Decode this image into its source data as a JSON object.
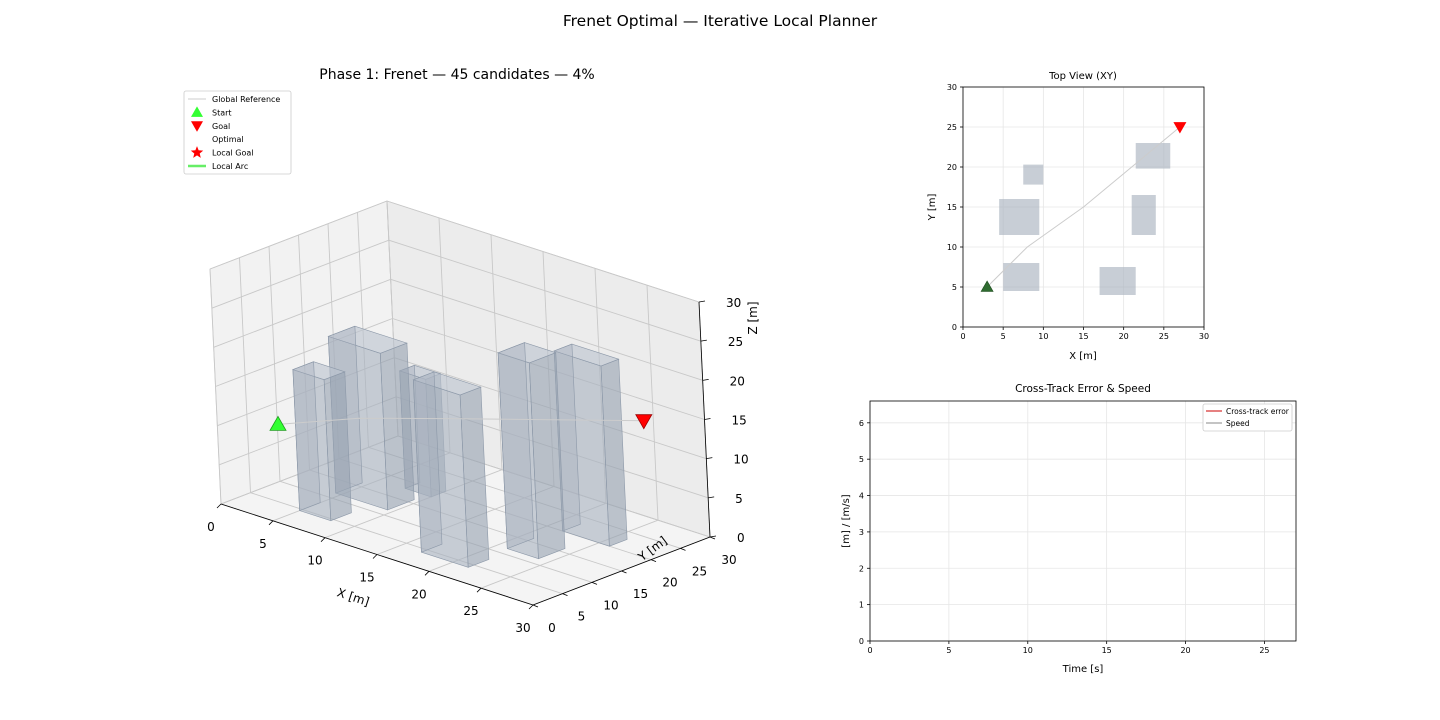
{
  "figure": {
    "suptitle": "Frenet Optimal — Iterative Local Planner"
  },
  "colors": {
    "obstacle": "#aab3c0",
    "reference": "#cccccc",
    "start": "#33ff33",
    "start_top_view": "#2e6b30",
    "goal": "#ff0000",
    "local_arc": "#66ee66",
    "cross_track": "#cc0000",
    "speed": "#888888",
    "grid": "#e6e6e6"
  },
  "chart_data": [
    {
      "id": "phase3d",
      "type": "scatter",
      "title": "Phase 1: Frenet — 45 candidates — 4%",
      "xlabel": "X [m]",
      "ylabel": "Y [m]",
      "zlabel": "Z [m]",
      "xlim": [
        0,
        30
      ],
      "ylim": [
        0,
        30
      ],
      "zlim": [
        0,
        30
      ],
      "xticks": [
        0,
        5,
        10,
        15,
        20,
        25,
        30
      ],
      "yticks": [
        0,
        5,
        10,
        15,
        20,
        25,
        30
      ],
      "zticks": [
        0,
        5,
        10,
        15,
        20,
        25,
        30
      ],
      "legend": {
        "position": "top-left",
        "entries": [
          "Global Reference",
          "Start",
          "Goal",
          "Optimal",
          "Local Goal",
          "Local Arc"
        ]
      },
      "start": [
        3,
        5,
        10
      ],
      "goal": [
        27,
        25,
        15
      ],
      "reference": [
        [
          3,
          5,
          10
        ],
        [
          8,
          10,
          11.5
        ],
        [
          15,
          15,
          13
        ],
        [
          21,
          20,
          14
        ],
        [
          27,
          25,
          15
        ]
      ],
      "obstacles": [
        {
          "x": [
            5,
            8
          ],
          "y": [
            4.5,
            8
          ],
          "z": [
            0,
            18
          ]
        },
        {
          "x": [
            17,
            21.5
          ],
          "y": [
            4,
            7.5
          ],
          "z": [
            0,
            22
          ]
        },
        {
          "x": [
            4.5,
            9.5
          ],
          "y": [
            11.5,
            16
          ],
          "z": [
            0,
            20
          ]
        },
        {
          "x": [
            21,
            24
          ],
          "y": [
            11.5,
            16
          ],
          "z": [
            0,
            25
          ]
        },
        {
          "x": [
            7.5,
            10
          ],
          "y": [
            18,
            20.5
          ],
          "z": [
            0,
            15
          ]
        },
        {
          "x": [
            21.5,
            26
          ],
          "y": [
            20,
            23
          ],
          "z": [
            0,
            23
          ]
        }
      ]
    },
    {
      "id": "topview",
      "type": "scatter",
      "title": "Top View (XY)",
      "xlabel": "X [m]",
      "ylabel": "Y [m]",
      "xlim": [
        0,
        30
      ],
      "ylim": [
        0,
        30
      ],
      "xticks": [
        0,
        5,
        10,
        15,
        20,
        25,
        30
      ],
      "yticks": [
        0,
        5,
        10,
        15,
        20,
        25,
        30
      ],
      "grid": true,
      "start": [
        3,
        5
      ],
      "goal": [
        27,
        25
      ],
      "reference": [
        [
          3,
          5
        ],
        [
          8,
          10
        ],
        [
          15,
          15
        ],
        [
          21,
          20
        ],
        [
          27,
          25
        ]
      ],
      "obstacles": [
        {
          "x": [
            5,
            9.5
          ],
          "y": [
            4.5,
            8
          ]
        },
        {
          "x": [
            17,
            21.5
          ],
          "y": [
            4,
            7.5
          ]
        },
        {
          "x": [
            4.5,
            9.5
          ],
          "y": [
            11.5,
            16
          ]
        },
        {
          "x": [
            21,
            24
          ],
          "y": [
            11.5,
            16.5
          ]
        },
        {
          "x": [
            7.5,
            10
          ],
          "y": [
            17.8,
            20.3
          ]
        },
        {
          "x": [
            21.5,
            25.8
          ],
          "y": [
            19.8,
            23
          ]
        }
      ]
    },
    {
      "id": "errspeed",
      "type": "line",
      "title": "Cross-Track Error & Speed",
      "xlabel": "Time [s]",
      "ylabel": "[m] / [m/s]",
      "xlim": [
        0,
        27
      ],
      "ylim": [
        0,
        6.6
      ],
      "xticks": [
        0,
        5,
        10,
        15,
        20,
        25
      ],
      "yticks": [
        0,
        1,
        2,
        3,
        4,
        5,
        6
      ],
      "grid": true,
      "legend": {
        "position": "top-right"
      },
      "series": [
        {
          "name": "Cross-track error",
          "values": []
        },
        {
          "name": "Speed",
          "values": []
        }
      ]
    }
  ]
}
